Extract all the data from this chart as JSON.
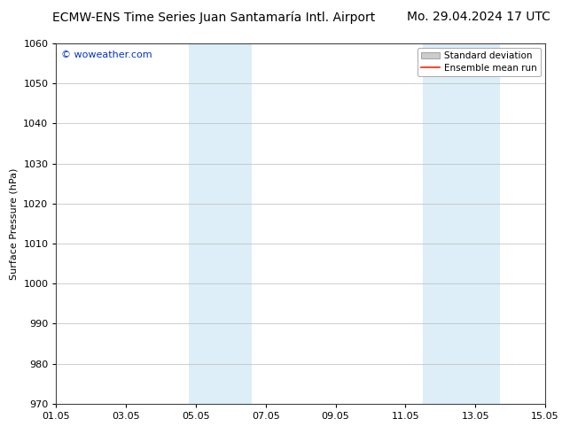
{
  "title": "ECMW-ENS Time Series Juan Santamaría Intl. Airport",
  "title_right": "Mo. 29.04.2024 17 UTC",
  "ylabel": "Surface Pressure (hPa)",
  "watermark": "© woweather.com",
  "watermark_color": "#0033cc",
  "ylim": [
    970,
    1060
  ],
  "yticks": [
    970,
    980,
    990,
    1000,
    1010,
    1020,
    1030,
    1040,
    1050,
    1060
  ],
  "xlim_start": 0.0,
  "xlim_end": 14.0,
  "xtick_labels": [
    "01.05",
    "03.05",
    "05.05",
    "07.05",
    "09.05",
    "11.05",
    "13.05",
    "15.05"
  ],
  "xtick_positions": [
    0,
    2,
    4,
    6,
    8,
    10,
    12,
    14
  ],
  "shaded_regions": [
    {
      "x_start": 3.8,
      "x_end": 5.6,
      "color": "#ddeef8"
    },
    {
      "x_start": 10.5,
      "x_end": 12.7,
      "color": "#ddeef8"
    }
  ],
  "background_color": "#ffffff",
  "plot_bg_color": "#ffffff",
  "grid_color": "#bbbbbb",
  "legend_std_dev_color": "#cccccc",
  "legend_mean_color": "#ff2200",
  "title_fontsize": 10,
  "label_fontsize": 8,
  "tick_fontsize": 8,
  "watermark_fontsize": 8
}
